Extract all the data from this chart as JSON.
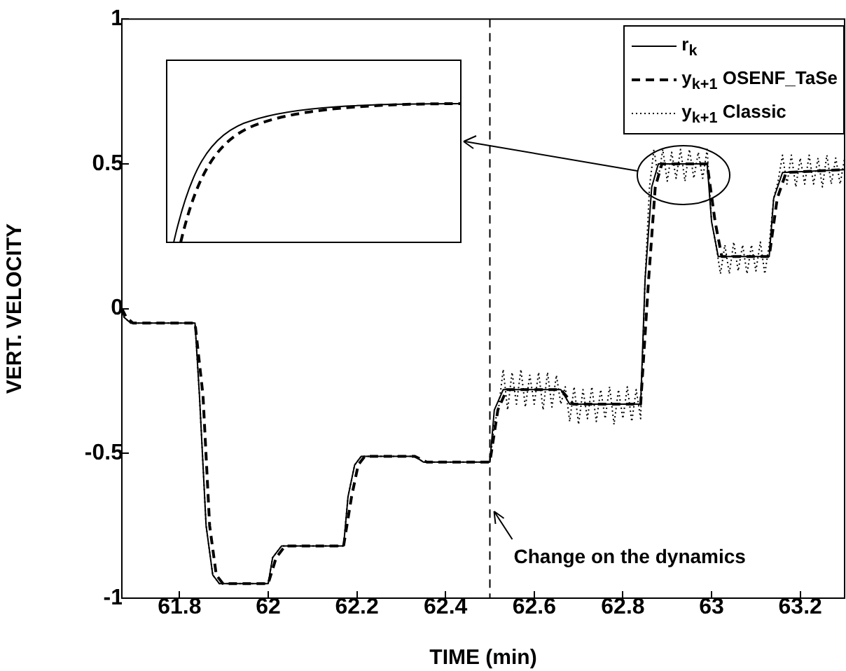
{
  "chart_data": {
    "type": "line",
    "xlabel": "TIME (min)",
    "ylabel": "VERT. VELOCITY",
    "xlim": [
      61.67,
      63.3
    ],
    "ylim": [
      -1,
      1
    ],
    "xticks": [
      61.8,
      62,
      62.2,
      62.4,
      62.6,
      62.8,
      63,
      63.2
    ],
    "yticks": [
      -1,
      -0.5,
      0,
      0.5,
      1
    ],
    "grid": false,
    "legend": "top right",
    "marker": "none",
    "series": [
      {
        "name": "r$_{k}$",
        "color": "#000000",
        "line_style": "solid",
        "x": [
          61.67,
          61.675,
          61.69,
          61.835,
          61.845,
          61.86,
          61.875,
          61.89,
          62.0,
          62.01,
          62.03,
          62.17,
          62.18,
          62.195,
          62.21,
          62.33,
          62.35,
          62.5,
          62.51,
          62.53,
          62.66,
          62.68,
          62.84,
          62.85,
          62.865,
          62.88,
          62.99,
          63.0,
          63.015,
          63.13,
          63.14,
          63.16,
          63.3
        ],
        "values": [
          0,
          -0.03,
          -0.05,
          -0.05,
          -0.3,
          -0.75,
          -0.92,
          -0.95,
          -0.95,
          -0.86,
          -0.82,
          -0.82,
          -0.65,
          -0.54,
          -0.51,
          -0.51,
          -0.53,
          -0.53,
          -0.35,
          -0.28,
          -0.28,
          -0.33,
          -0.33,
          0.1,
          0.42,
          0.5,
          0.5,
          0.3,
          0.18,
          0.18,
          0.38,
          0.47,
          0.48
        ]
      },
      {
        "name": "y$_{k+1}$ OSENF_TaSe",
        "color": "#000000",
        "line_style": "dashed",
        "x": [
          61.67,
          61.68,
          61.695,
          61.835,
          61.853,
          61.868,
          61.883,
          61.898,
          62.0,
          62.018,
          62.038,
          62.17,
          62.188,
          62.203,
          62.218,
          62.33,
          62.358,
          62.5,
          62.518,
          62.538,
          62.66,
          62.688,
          62.84,
          62.858,
          62.873,
          62.888,
          62.99,
          63.008,
          63.023,
          63.13,
          63.148,
          63.168,
          63.3
        ],
        "values": [
          0,
          -0.03,
          -0.05,
          -0.05,
          -0.3,
          -0.75,
          -0.92,
          -0.95,
          -0.95,
          -0.86,
          -0.82,
          -0.82,
          -0.65,
          -0.54,
          -0.51,
          -0.51,
          -0.53,
          -0.53,
          -0.35,
          -0.28,
          -0.28,
          -0.33,
          -0.33,
          0.1,
          0.42,
          0.5,
          0.5,
          0.3,
          0.18,
          0.18,
          0.38,
          0.47,
          0.48
        ]
      },
      {
        "name": "y$_{k+1}$ Classic",
        "color": "#000000",
        "line_style": "dotted",
        "x": [
          61.67,
          61.675,
          61.69,
          61.835,
          61.845,
          61.86,
          61.875,
          61.89,
          62.0,
          62.01,
          62.03,
          62.17,
          62.18,
          62.195,
          62.21,
          62.33,
          62.35,
          62.5,
          62.51,
          62.52,
          62.53,
          62.54,
          62.55,
          62.56,
          62.57,
          62.58,
          62.59,
          62.6,
          62.61,
          62.62,
          62.63,
          62.64,
          62.65,
          62.66,
          62.67,
          62.68,
          62.69,
          62.7,
          62.71,
          62.72,
          62.73,
          62.74,
          62.75,
          62.76,
          62.77,
          62.78,
          62.79,
          62.8,
          62.81,
          62.82,
          62.83,
          62.84,
          62.85,
          62.86,
          62.87,
          62.88,
          62.89,
          62.9,
          62.91,
          62.92,
          62.93,
          62.94,
          62.95,
          62.96,
          62.97,
          62.98,
          62.99,
          63.0,
          63.01,
          63.02,
          63.03,
          63.04,
          63.05,
          63.06,
          63.07,
          63.08,
          63.09,
          63.1,
          63.11,
          63.12,
          63.13,
          63.14,
          63.15,
          63.16,
          63.17,
          63.18,
          63.19,
          63.2,
          63.21,
          63.22,
          63.23,
          63.24,
          63.25,
          63.26,
          63.27,
          63.28,
          63.29,
          63.3
        ],
        "values": [
          0,
          -0.03,
          -0.05,
          -0.05,
          -0.3,
          -0.75,
          -0.92,
          -0.95,
          -0.95,
          -0.86,
          -0.82,
          -0.82,
          -0.65,
          -0.54,
          -0.51,
          -0.51,
          -0.53,
          -0.53,
          -0.4,
          -0.34,
          -0.21,
          -0.35,
          -0.22,
          -0.33,
          -0.21,
          -0.34,
          -0.23,
          -0.33,
          -0.22,
          -0.35,
          -0.22,
          -0.34,
          -0.23,
          -0.33,
          -0.27,
          -0.39,
          -0.27,
          -0.4,
          -0.28,
          -0.38,
          -0.27,
          -0.39,
          -0.28,
          -0.38,
          -0.27,
          -0.4,
          -0.28,
          -0.38,
          -0.27,
          -0.39,
          -0.28,
          -0.38,
          0.1,
          0.42,
          0.55,
          0.45,
          0.55,
          0.44,
          0.54,
          0.45,
          0.55,
          0.44,
          0.55,
          0.45,
          0.54,
          0.45,
          0.55,
          0.3,
          0.22,
          0.12,
          0.22,
          0.12,
          0.23,
          0.13,
          0.22,
          0.12,
          0.22,
          0.13,
          0.23,
          0.12,
          0.22,
          0.38,
          0.44,
          0.53,
          0.43,
          0.53,
          0.42,
          0.52,
          0.43,
          0.53,
          0.43,
          0.52,
          0.42,
          0.53,
          0.43,
          0.52,
          0.43,
          0.52
        ]
      }
    ],
    "ref_lines": [
      {
        "axis": "x",
        "value": 62.5,
        "label": "Change on the dynamics",
        "line_style": "dashed"
      }
    ]
  }
}
